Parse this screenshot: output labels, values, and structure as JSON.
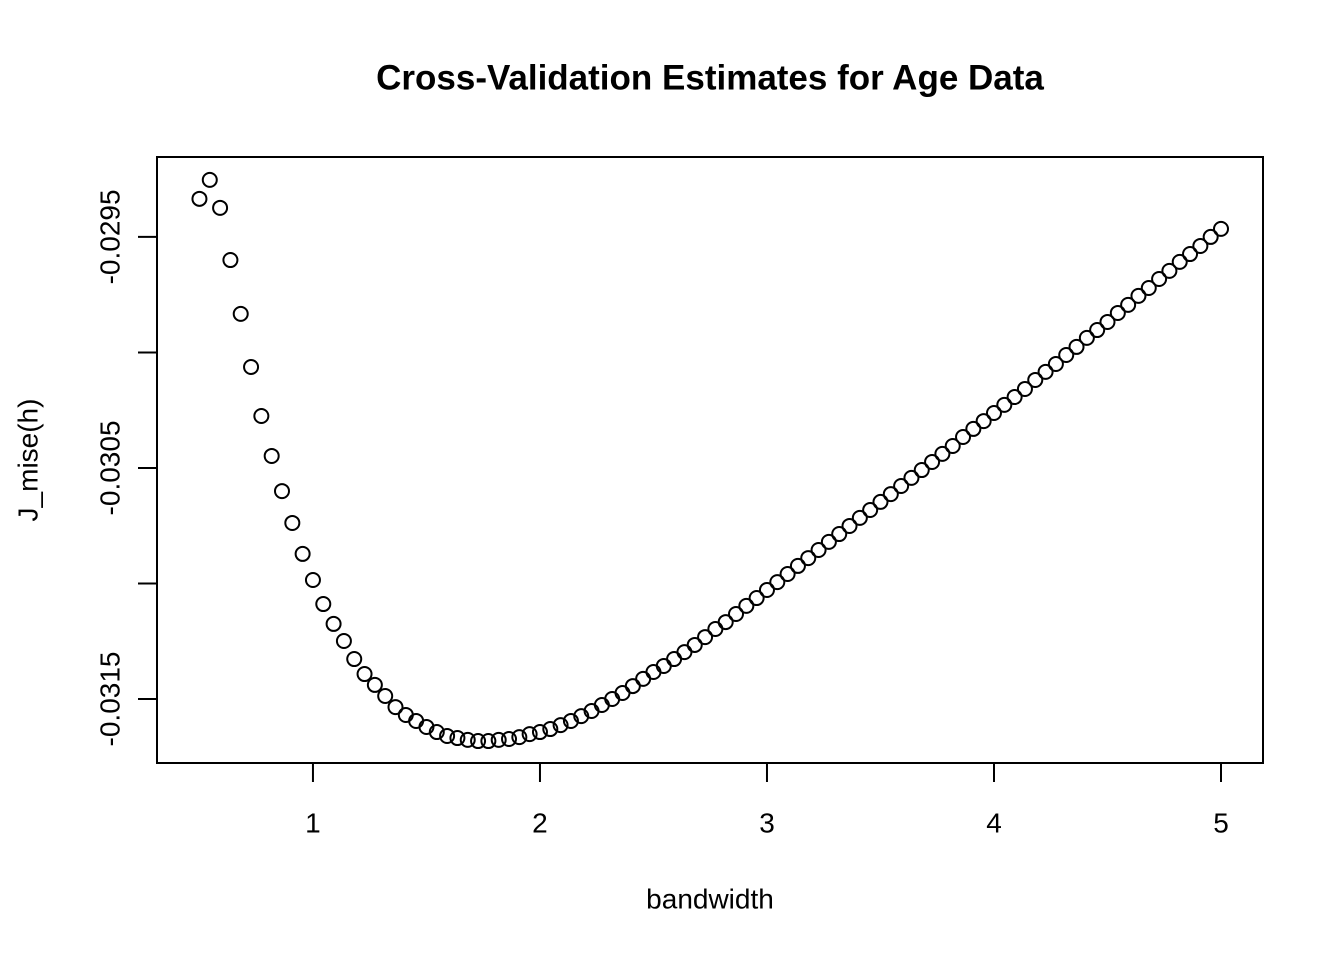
{
  "chart_data": {
    "type": "scatter",
    "title": "Cross-Validation Estimates for Age Data",
    "x_label": "bandwidth",
    "y_label": "J_mise(h)",
    "x": [
      0.5,
      0.5455,
      0.5909,
      0.6364,
      0.6818,
      0.7273,
      0.7727,
      0.8182,
      0.8636,
      0.9091,
      0.9545,
      1.0,
      1.0455,
      1.0909,
      1.1364,
      1.1818,
      1.2273,
      1.2727,
      1.3182,
      1.3636,
      1.4091,
      1.4545,
      1.5,
      1.5455,
      1.5909,
      1.6364,
      1.6818,
      1.7273,
      1.7727,
      1.8182,
      1.8636,
      1.9091,
      1.9545,
      2.0,
      2.0455,
      2.0909,
      2.1364,
      2.1818,
      2.2273,
      2.2727,
      2.3182,
      2.3636,
      2.4091,
      2.4545,
      2.5,
      2.5455,
      2.5909,
      2.6364,
      2.6818,
      2.7273,
      2.7727,
      2.8182,
      2.8636,
      2.9091,
      2.9545,
      3.0,
      3.0455,
      3.0909,
      3.1364,
      3.1818,
      3.2273,
      3.2727,
      3.3182,
      3.3636,
      3.4091,
      3.4545,
      3.5,
      3.5455,
      3.5909,
      3.6364,
      3.6818,
      3.7273,
      3.7727,
      3.8182,
      3.8636,
      3.9091,
      3.9545,
      4.0,
      4.0455,
      4.0909,
      4.1364,
      4.1818,
      4.2273,
      4.2727,
      4.3182,
      4.3636,
      4.4091,
      4.4545,
      4.5,
      4.5455,
      4.5909,
      4.6364,
      4.6818,
      4.7273,
      4.7727,
      4.8182,
      4.8636,
      4.9091,
      4.9545,
      5.0
    ],
    "values": [
      -0.029335,
      -0.029253,
      -0.029374,
      -0.0296,
      -0.029833,
      -0.030063,
      -0.030275,
      -0.030448,
      -0.0306,
      -0.030738,
      -0.030872,
      -0.030985,
      -0.031089,
      -0.031175,
      -0.031249,
      -0.031327,
      -0.031392,
      -0.031439,
      -0.031487,
      -0.031535,
      -0.031569,
      -0.031595,
      -0.031621,
      -0.031643,
      -0.03166,
      -0.031669,
      -0.031677,
      -0.031682,
      -0.031682,
      -0.031677,
      -0.031673,
      -0.031665,
      -0.031652,
      -0.031643,
      -0.03163,
      -0.031613,
      -0.031595,
      -0.031574,
      -0.031552,
      -0.031526,
      -0.0315,
      -0.031474,
      -0.031444,
      -0.031413,
      -0.031383,
      -0.031357,
      -0.031327,
      -0.031297,
      -0.031266,
      -0.031232,
      -0.031197,
      -0.031167,
      -0.031132,
      -0.031097,
      -0.031063,
      -0.031028,
      -0.030994,
      -0.030959,
      -0.030924,
      -0.03089,
      -0.030855,
      -0.03082,
      -0.030786,
      -0.030751,
      -0.030716,
      -0.030682,
      -0.030647,
      -0.030613,
      -0.030578,
      -0.030543,
      -0.030509,
      -0.030474,
      -0.030439,
      -0.030405,
      -0.030366,
      -0.030331,
      -0.030297,
      -0.030262,
      -0.030227,
      -0.030193,
      -0.030158,
      -0.030119,
      -0.030084,
      -0.03005,
      -0.030011,
      -0.029976,
      -0.029937,
      -0.029903,
      -0.029868,
      -0.029829,
      -0.029794,
      -0.029755,
      -0.029721,
      -0.029682,
      -0.029647,
      -0.029608,
      -0.029574,
      -0.029539,
      -0.0295,
      -0.029465
    ],
    "color": "#000000",
    "xlim": [
      0.313,
      5.185
    ],
    "xticks": [
      1,
      2,
      3,
      4,
      5
    ],
    "ylim": [
      -0.031777,
      -0.029154
    ],
    "yticks": [
      -0.0295,
      {
        "value": -0.03,
        "label": null
      },
      -0.0305,
      {
        "value": -0.031,
        "label": null
      },
      -0.0315
    ]
  }
}
